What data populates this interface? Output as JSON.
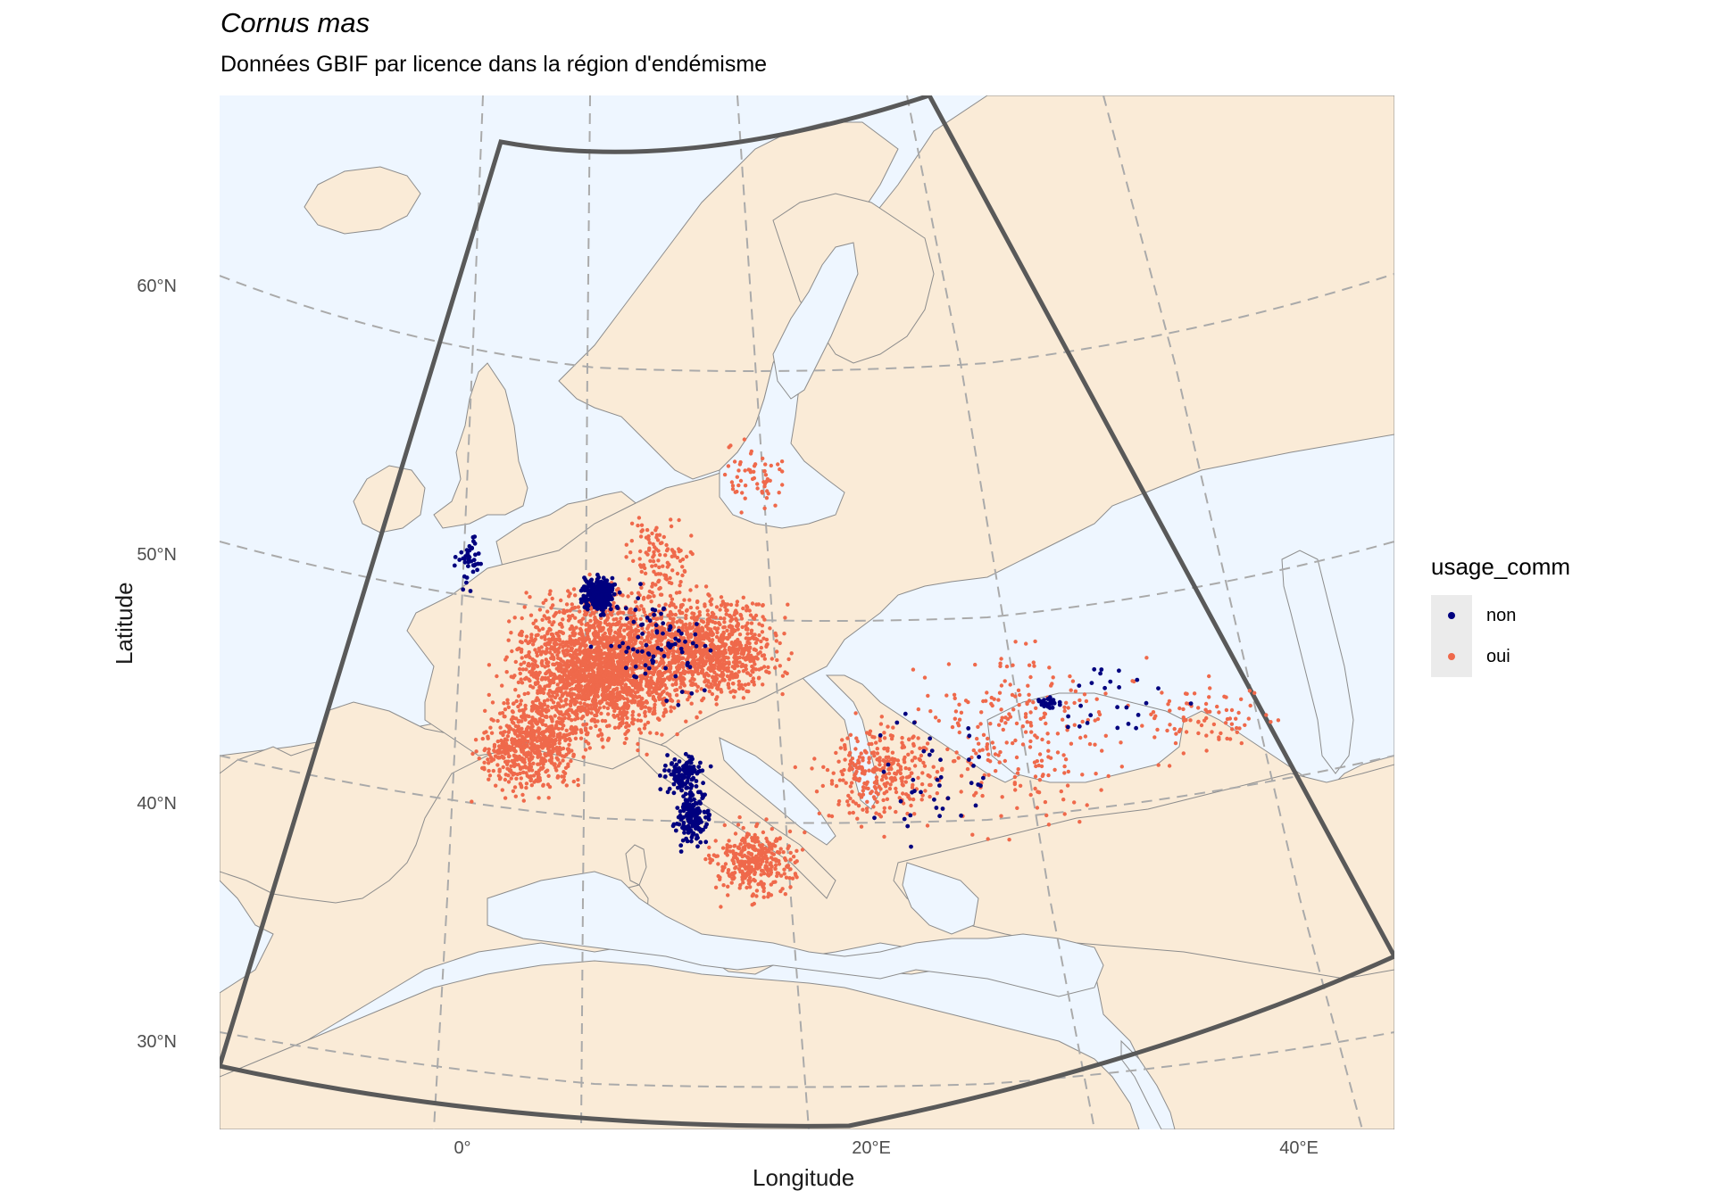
{
  "title": "Cornus mas",
  "subtitle": "Données GBIF par licence dans la région d'endémisme",
  "axes": {
    "xlabel": "Longitude",
    "ylabel": "Latitude",
    "yticks": [
      "60°N",
      "50°N",
      "40°N",
      "30°N"
    ],
    "xticks": [
      "0°",
      "20°E",
      "40°E"
    ]
  },
  "legend": {
    "title": "usage_comm",
    "items": [
      {
        "label": "non",
        "color": "#00007f"
      },
      {
        "label": "oui",
        "color": "#ef694b"
      }
    ]
  },
  "map": {
    "projection": "conic",
    "land_color": "#faebd7",
    "water_color": "#eef6ff",
    "border_color": "#8c8c8c",
    "graticule_color": "#aaaaaa",
    "endemic_region_outline_color": "#595959",
    "extent": {
      "lon_min": -12,
      "lon_max": 45,
      "lat_min": 25,
      "lat_max": 70
    }
  }
}
